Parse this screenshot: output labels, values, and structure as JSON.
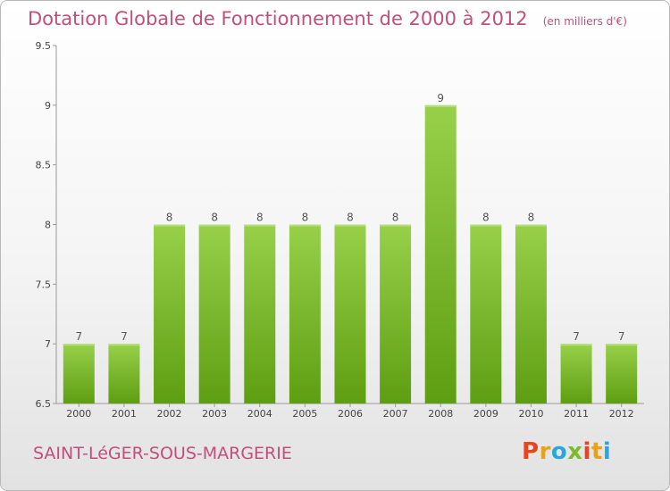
{
  "page": {
    "title": "Dotation Globale de Fonctionnement de 2000 à 2012",
    "unit_note": "(en milliers d'€)",
    "commune": "SAINT-LéGER-SOUS-MARGERIE",
    "logo": {
      "letters": [
        "P",
        "r",
        "o",
        "x",
        "i",
        "t",
        "i"
      ],
      "colors": [
        "#e6461e",
        "#e8a21a",
        "#2aa7d8",
        "#7dbb2e",
        "#e6461e",
        "#e8a21a",
        "#2aa7d8"
      ]
    }
  },
  "chart_data": {
    "type": "bar",
    "title": "Dotation Globale de Fonctionnement de 2000 à 2012",
    "subtitle": "(en milliers d'€)",
    "categories": [
      "2000",
      "2001",
      "2002",
      "2003",
      "2004",
      "2005",
      "2006",
      "2007",
      "2008",
      "2009",
      "2010",
      "2011",
      "2012"
    ],
    "values": [
      7,
      7,
      8,
      8,
      8,
      8,
      8,
      8,
      9,
      8,
      8,
      7,
      7
    ],
    "data_labels": [
      "7",
      "7",
      "8",
      "8",
      "8",
      "8",
      "8",
      "8",
      "9",
      "8",
      "8",
      "7",
      "7"
    ],
    "ylim": [
      6.5,
      9.5
    ],
    "yticks": [
      6.5,
      7,
      7.5,
      8,
      8.5,
      9,
      9.5
    ],
    "ytick_labels": [
      "6.5",
      "7",
      "7.5",
      "8",
      "8.5",
      "9",
      "9.5"
    ],
    "xlabel": "",
    "ylabel": "",
    "grid": false,
    "bar_color": "#7cbf2f"
  }
}
